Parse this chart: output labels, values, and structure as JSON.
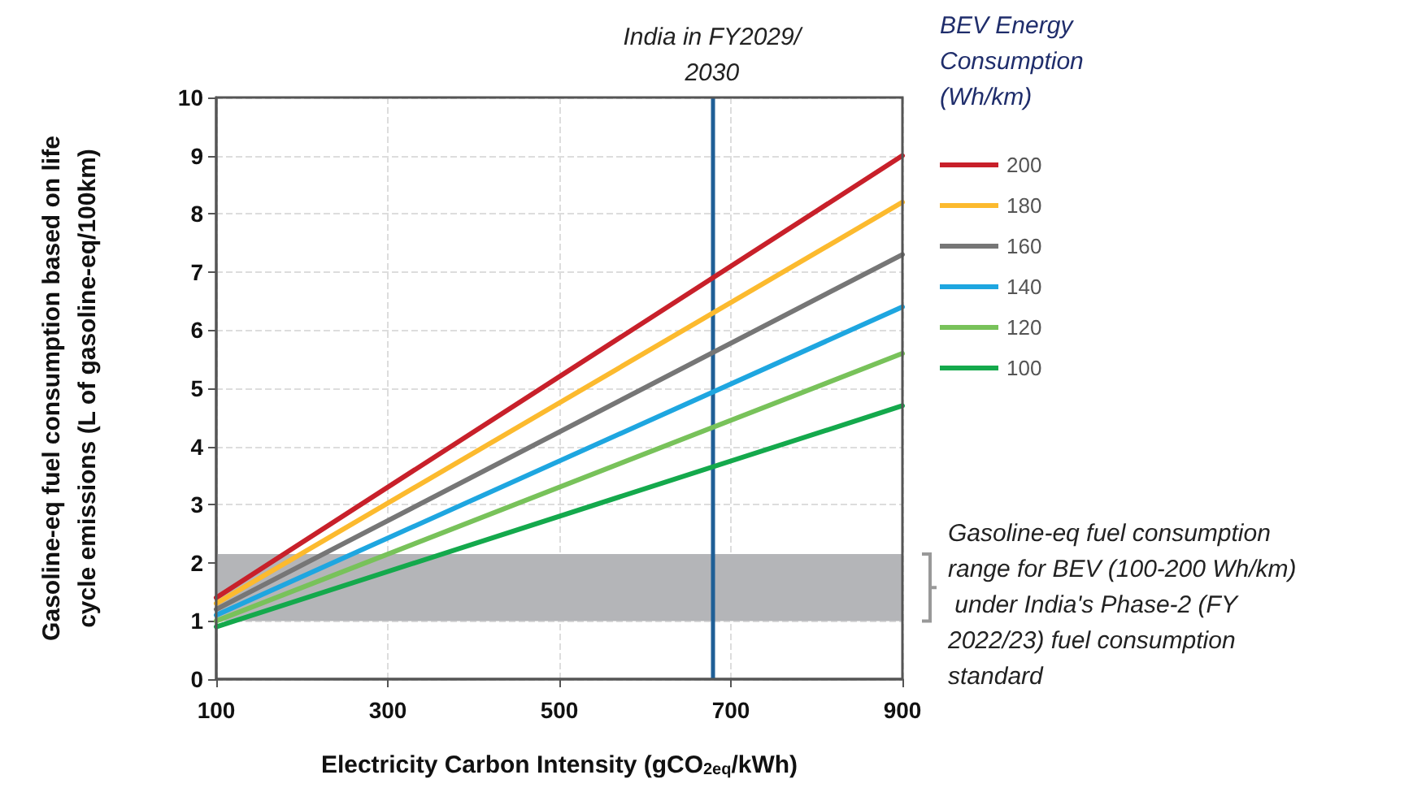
{
  "chart_data": {
    "type": "line",
    "xlabel": "Electricity Carbon Intensity (gCO$_{2eq}$/kWh)",
    "ylabel": "Gasoline-eq fuel consumption based on life cycle emissions (L of gasoline-eq/100km)",
    "legend_title": "BEV Energy Consumption (Wh/km)",
    "x": [
      100,
      900
    ],
    "series": [
      {
        "name": "200",
        "color": "#c8202a",
        "values": [
          1.4,
          9.0
        ]
      },
      {
        "name": "180",
        "color": "#fcba2e",
        "values": [
          1.3,
          8.2
        ]
      },
      {
        "name": "160",
        "color": "#767676",
        "values": [
          1.2,
          7.3
        ]
      },
      {
        "name": "140",
        "color": "#1ea6e0",
        "values": [
          1.1,
          6.4
        ]
      },
      {
        "name": "120",
        "color": "#78c25a",
        "values": [
          1.0,
          5.6
        ]
      },
      {
        "name": "100",
        "color": "#14a94c",
        "values": [
          0.9,
          4.7
        ]
      }
    ],
    "xlim": [
      100,
      900
    ],
    "xticks": [
      100,
      300,
      500,
      700,
      900
    ],
    "ylim": [
      0,
      10
    ],
    "yticks": [
      0,
      1,
      2,
      3,
      4,
      5,
      6,
      7,
      8,
      9,
      10
    ],
    "ref_lines": [
      {
        "axis": "x",
        "value": 678,
        "label": "India in FY2029/2030",
        "color": "#1f5f96"
      }
    ],
    "bands": [
      {
        "axis": "y",
        "from": 1.0,
        "to": 2.15,
        "color": "#b4b5b8",
        "label": "Gasoline-eq fuel consumption range for BEV (100-200 Wh/km) under India's Phase-2 (FY 2022/23) fuel consumption standard"
      }
    ],
    "grid": true,
    "legend": "right",
    "marker": "none",
    "line_style": "solid"
  }
}
